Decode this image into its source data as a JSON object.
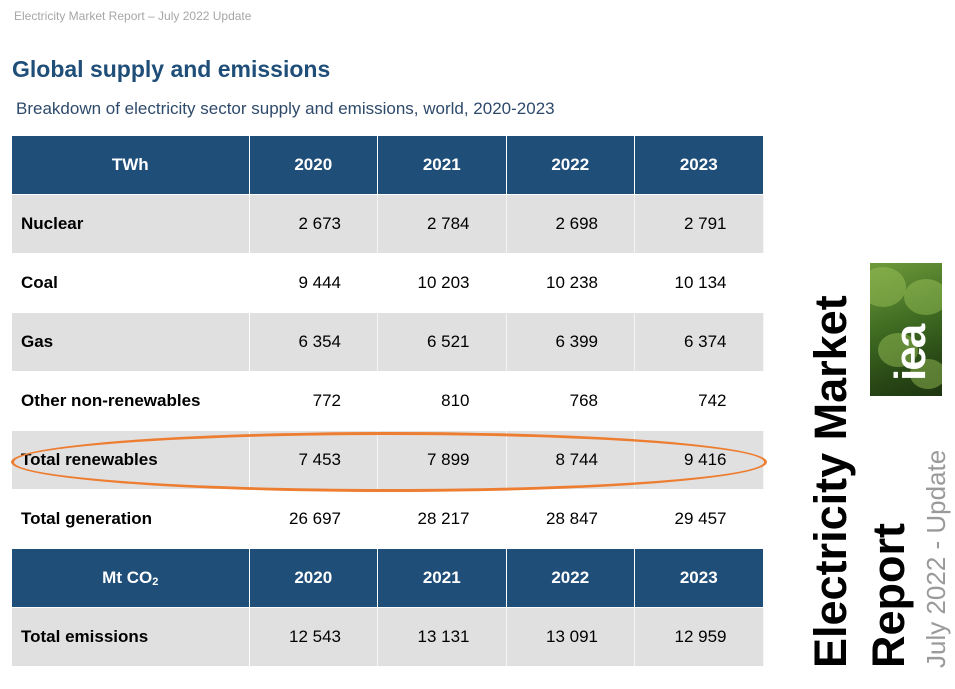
{
  "header": {
    "running_title": "Electricity Market Report – July 2022 Update"
  },
  "page_title": "Global supply and emissions",
  "subtitle": "Breakdown of electricity sector supply and emissions, world, 2020-2023",
  "supply_table": {
    "unit": "TWh",
    "years": [
      "2020",
      "2021",
      "2022",
      "2023"
    ],
    "rows": [
      {
        "label": "Nuclear",
        "values": [
          "2 673",
          "2 784",
          "2 698",
          "2 791"
        ]
      },
      {
        "label": "Coal",
        "values": [
          "9 444",
          "10 203",
          "10 238",
          "10 134"
        ]
      },
      {
        "label": "Gas",
        "values": [
          "6 354",
          "6 521",
          "6 399",
          "6 374"
        ]
      },
      {
        "label": "Other non-renewables",
        "values": [
          "772",
          "810",
          "768",
          "742"
        ]
      },
      {
        "label": "Total renewables",
        "values": [
          "7 453",
          "7 899",
          "8 744",
          "9 416"
        ]
      },
      {
        "label": "Total generation",
        "values": [
          "26 697",
          "28 217",
          "28 847",
          "29 457"
        ]
      }
    ]
  },
  "emissions_table": {
    "unit_main": "Mt CO",
    "unit_sub": "2",
    "years": [
      "2020",
      "2021",
      "2022",
      "2023"
    ],
    "rows": [
      {
        "label": "Total emissions",
        "values": [
          "12 543",
          "13 131",
          "13 091",
          "12 959"
        ]
      }
    ]
  },
  "highlight": {
    "color": "#ed7d31"
  },
  "cover": {
    "title_line1": "Electricity Market",
    "title_line2": "Report",
    "edition": "July 2022 - Update",
    "logo_text": "iea"
  },
  "colors": {
    "header_fill": "#1f4e79",
    "row_shade": "#e0e0e0",
    "title_color": "#1f4e79"
  }
}
